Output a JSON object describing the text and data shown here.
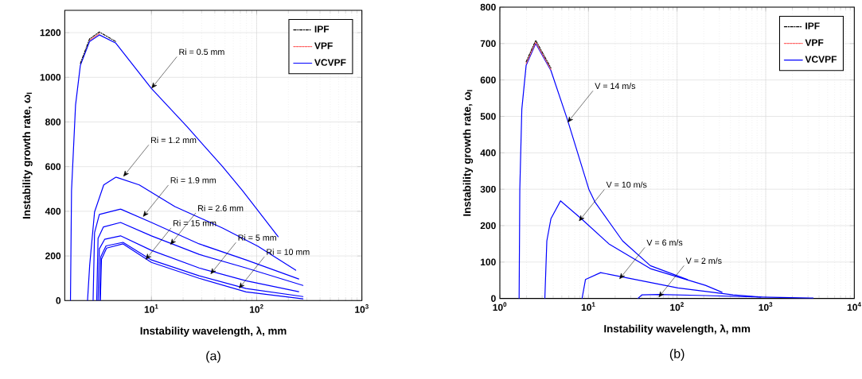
{
  "chart_data": [
    {
      "type": "line",
      "title": "(a)",
      "xlabel": "Instability wavelength, λ, mm",
      "ylabel": "Instability growth rate, ω$_{I}$",
      "log": "x",
      "grid": true,
      "legend": "top right",
      "marker": "none",
      "xlim": [
        1.5,
        1000
      ],
      "ylim": [
        0,
        1300
      ],
      "xticks": [
        {
          "value": 10,
          "label": "10$^{1}$"
        },
        {
          "value": 100,
          "label": "10$^{2}$"
        },
        {
          "value": 1000,
          "label": "10$^{3}$"
        }
      ],
      "yticks": [
        0,
        200,
        400,
        600,
        800,
        1000,
        1200
      ],
      "series": [
        {
          "name": "IPF",
          "color": "#000000",
          "line_style": "dashdot",
          "x": [
            2.11,
            2.58,
            3.2,
            4.59
          ],
          "values": [
            1062,
            1172,
            1203,
            1160
          ]
        },
        {
          "name": "VPF",
          "color": "#ff6666",
          "line_style": "dashed",
          "x": [
            2.58,
            3.2
          ],
          "values": [
            1166,
            1196
          ]
        },
        {
          "name": "VCVPF",
          "color": "#0000ff",
          "line_style": "solid",
          "x": [
            1.7,
            1.74,
            1.9,
            2.11,
            2.58,
            3.2,
            4.59,
            10,
            21.8,
            47.4,
            73.3,
            160
          ],
          "values": [
            0,
            493,
            875,
            1053,
            1160,
            1190,
            1153,
            950,
            779,
            600,
            493,
            286
          ]
        },
        {
          "color": "#0000ff",
          "line_style": "solid",
          "x": [
            2.47,
            2.59,
            2.88,
            3.52,
            4.59,
            7.67,
            16.7,
            47.4,
            103,
            235
          ],
          "values": [
            0,
            160,
            397,
            518,
            553,
            518,
            421,
            325,
            243,
            136
          ]
        },
        {
          "color": "#0000ff",
          "line_style": "solid",
          "x": [
            2.79,
            2.88,
            3.2,
            5.09,
            10,
            28.4,
            79.3,
            251
          ],
          "values": [
            0,
            304,
            386,
            410,
            350,
            254,
            182,
            97
          ]
        },
        {
          "color": "#0000ff",
          "line_style": "solid",
          "x": [
            3.02,
            3.11,
            3.5,
            5.09,
            10,
            28.4,
            79.3,
            276
          ],
          "values": [
            0,
            279,
            330,
            350,
            290,
            207,
            146,
            68
          ]
        },
        {
          "color": "#0000ff",
          "line_style": "solid",
          "x": [
            3.11,
            3.2,
            3.6,
            5.09,
            10,
            28.4,
            79.3,
            251
          ],
          "values": [
            0,
            232,
            275,
            290,
            225,
            146,
            89,
            40
          ]
        },
        {
          "color": "#0000ff",
          "line_style": "solid",
          "x": [
            3.22,
            3.3,
            3.7,
            5.37,
            10,
            28.4,
            79.3,
            276
          ],
          "values": [
            0,
            196,
            245,
            261,
            182,
            111,
            54,
            18
          ]
        },
        {
          "color": "#0000ff",
          "line_style": "solid",
          "x": [
            3.27,
            3.35,
            3.75,
            5.37,
            10,
            28.4,
            79.3,
            276
          ],
          "values": [
            0,
            185,
            235,
            254,
            171,
            100,
            39,
            8
          ]
        }
      ],
      "annotations": [
        {
          "text": "Ri = 0.5 mm",
          "x": 10,
          "y": 950
        },
        {
          "text": "Ri = 1.2 mm",
          "x": 5.4,
          "y": 555
        },
        {
          "text": "Ri = 1.9 mm",
          "x": 8.3,
          "y": 375
        },
        {
          "text": "Ri = 2.6 mm",
          "x": 15.1,
          "y": 250
        },
        {
          "text": "Ri = 5 mm",
          "x": 36.4,
          "y": 118
        },
        {
          "text": "Ri = 10 mm",
          "x": 67.8,
          "y": 54
        },
        {
          "text": "Ri = 15 mm",
          "x": 8.8,
          "y": 183
        }
      ]
    },
    {
      "type": "line",
      "title": "(b)",
      "xlabel": "Instability wavelength, λ, mm",
      "ylabel": "Instability growth rate, ω$_{I}$",
      "log": "x",
      "grid": true,
      "legend": "top right",
      "marker": "none",
      "xlim": [
        1,
        10000
      ],
      "ylim": [
        0,
        800
      ],
      "xticks": [
        {
          "value": 1,
          "label": "10$^{0}$"
        },
        {
          "value": 10,
          "label": "10$^{1}$"
        },
        {
          "value": 100,
          "label": "10$^{2}$"
        },
        {
          "value": 1000,
          "label": "10$^{3}$"
        },
        {
          "value": 10000,
          "label": "10$^{4}$"
        }
      ],
      "yticks": [
        0,
        100,
        200,
        300,
        400,
        500,
        600,
        700,
        800
      ],
      "series": [
        {
          "name": "IPF",
          "color": "#000000",
          "line_style": "dashdot",
          "x": [
            1.98,
            2.54,
            3.77
          ],
          "values": [
            650,
            709,
            633
          ]
        },
        {
          "name": "VPF",
          "color": "#ff6666",
          "line_style": "dashed",
          "x": [
            1.98,
            2.54,
            3.77
          ],
          "values": [
            645,
            704,
            629
          ]
        },
        {
          "name": "VCVPF",
          "color": "#0000ff",
          "line_style": "solid",
          "x": [
            1.65,
            1.68,
            1.77,
            1.98,
            2.54,
            3.77,
            5.79,
            10.1,
            11.9,
            24.3,
            49.9,
            131
          ],
          "values": [
            0,
            300,
            520,
            640,
            700,
            626,
            491,
            300,
            264,
            158,
            90,
            52
          ]
        },
        {
          "color": "#0000ff",
          "line_style": "solid",
          "x": [
            3.22,
            3.39,
            3.77,
            4.84,
            8.3,
            17.0,
            49.9,
            209,
            322
          ],
          "values": [
            0,
            158,
            219,
            268,
            219,
            150,
            82,
            36,
            17
          ]
        },
        {
          "color": "#0000ff",
          "line_style": "solid",
          "x": [
            8.47,
            9.25,
            13.7,
            24.3,
            102,
            429,
            879
          ],
          "values": [
            0,
            52,
            71,
            59,
            29,
            10,
            4
          ]
        },
        {
          "color": "#0000ff",
          "line_style": "solid",
          "x": [
            36.1,
            40.2,
            61.8,
            209,
            879,
            3436
          ],
          "values": [
            0,
            10,
            11,
            8,
            4,
            1
          ]
        }
      ],
      "annotations": [
        {
          "text": "V = 14 m/s",
          "x": 5.8,
          "y": 483
        },
        {
          "text": "V = 10 m/s",
          "x": 7.8,
          "y": 212
        },
        {
          "text": "V = 6 m/s",
          "x": 22.3,
          "y": 53
        },
        {
          "text": "V = 2 m/s",
          "x": 61.8,
          "y": 3
        }
      ]
    }
  ]
}
